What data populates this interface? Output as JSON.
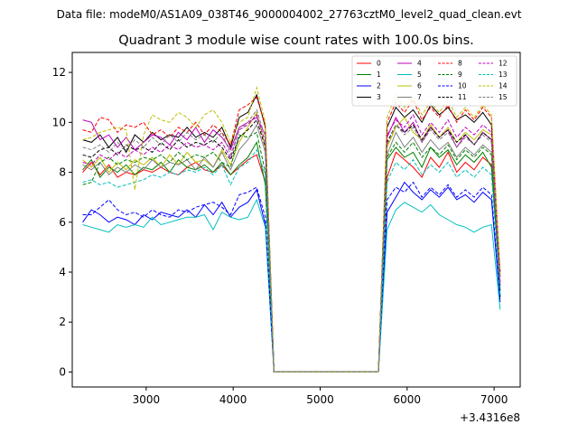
{
  "chart_data": {
    "type": "line",
    "suptitle": "Data file: modeM0/AS1A09_038T46_9000004002_27763cztM0_level2_quad_clean.evt",
    "title": "Quadrant 3 module wise count rates with 100.0s bins.",
    "xlabel": "",
    "ylabel": "",
    "x_offset_label": "+3.4316e8",
    "xlim": [
      2150,
      7300
    ],
    "ylim": [
      -0.6,
      12.8
    ],
    "xticks": [
      3000,
      4000,
      5000,
      6000,
      7000
    ],
    "yticks": [
      0,
      2,
      4,
      6,
      8,
      10,
      12
    ],
    "legend_position": "top-right",
    "x": [
      2270,
      2370,
      2470,
      2570,
      2670,
      2770,
      2870,
      2970,
      3070,
      3170,
      3270,
      3370,
      3470,
      3570,
      3670,
      3770,
      3870,
      3970,
      4070,
      4170,
      4270,
      4370,
      4470,
      4570,
      5570,
      5670,
      5770,
      5870,
      5970,
      6070,
      6170,
      6270,
      6370,
      6470,
      6570,
      6670,
      6770,
      6870,
      6970,
      7070
    ],
    "series": [
      {
        "name": "0",
        "color": "#ff0000",
        "dash": "solid",
        "values": [
          8.0,
          8.4,
          7.9,
          8.3,
          7.8,
          8.0,
          7.9,
          8.1,
          8.0,
          8.2,
          8.0,
          7.9,
          8.2,
          8.4,
          8.1,
          8.0,
          8.3,
          7.9,
          8.2,
          8.5,
          8.7,
          7.6,
          0.0,
          0.0,
          0.0,
          0.0,
          7.8,
          8.8,
          8.5,
          8.2,
          7.8,
          8.6,
          8.2,
          8.8,
          8.0,
          8.4,
          8.1,
          8.6,
          8.3,
          3.8
        ]
      },
      {
        "name": "1",
        "color": "#008000",
        "dash": "solid",
        "values": [
          8.1,
          8.5,
          7.8,
          8.2,
          8.0,
          8.3,
          7.9,
          8.2,
          8.1,
          8.4,
          8.0,
          8.5,
          8.2,
          8.1,
          8.3,
          8.0,
          8.4,
          7.9,
          8.3,
          8.6,
          9.2,
          7.5,
          0.0,
          0.0,
          0.0,
          0.0,
          8.5,
          9.0,
          8.6,
          8.8,
          8.2,
          9.0,
          8.6,
          8.9,
          8.3,
          8.7,
          8.4,
          8.8,
          8.2,
          3.5
        ]
      },
      {
        "name": "2",
        "color": "#0000ff",
        "dash": "solid",
        "values": [
          6.0,
          6.5,
          6.3,
          6.0,
          6.2,
          6.1,
          5.9,
          6.3,
          6.1,
          6.4,
          6.3,
          6.2,
          6.5,
          6.2,
          6.7,
          6.3,
          6.8,
          6.2,
          6.6,
          6.8,
          7.3,
          5.9,
          0.0,
          0.0,
          0.0,
          0.0,
          6.4,
          7.0,
          7.6,
          7.2,
          6.9,
          7.3,
          7.0,
          7.4,
          6.9,
          7.1,
          6.8,
          7.2,
          6.9,
          2.8
        ]
      },
      {
        "name": "3",
        "color": "#000000",
        "dash": "solid",
        "values": [
          9.3,
          9.2,
          9.5,
          9.0,
          9.4,
          8.8,
          9.5,
          9.2,
          9.6,
          9.3,
          9.5,
          9.4,
          9.8,
          9.4,
          9.6,
          9.4,
          9.8,
          9.0,
          10.2,
          10.4,
          11.1,
          9.8,
          0.0,
          0.0,
          0.0,
          0.0,
          9.8,
          10.6,
          10.2,
          10.5,
          10.0,
          10.7,
          10.3,
          10.6,
          10.1,
          10.3,
          10.0,
          10.4,
          9.9,
          3.0
        ]
      },
      {
        "name": "4",
        "color": "#bf00bf",
        "dash": "solid",
        "values": [
          10.1,
          10.0,
          9.3,
          9.5,
          9.0,
          9.4,
          8.9,
          9.2,
          9.5,
          9.4,
          9.1,
          9.6,
          9.3,
          9.8,
          9.2,
          9.7,
          9.4,
          8.9,
          9.8,
          10.0,
          10.2,
          9.5,
          0.0,
          0.0,
          0.0,
          0.0,
          9.4,
          10.2,
          9.6,
          10.0,
          9.2,
          9.8,
          9.4,
          9.7,
          9.0,
          9.5,
          9.1,
          9.6,
          9.3,
          3.4
        ]
      },
      {
        "name": "5",
        "color": "#00bfbf",
        "dash": "solid",
        "values": [
          5.9,
          5.8,
          5.7,
          5.6,
          5.9,
          5.8,
          5.9,
          5.8,
          6.2,
          5.9,
          6.0,
          6.1,
          6.2,
          6.2,
          6.3,
          5.7,
          6.4,
          6.2,
          6.1,
          6.2,
          6.9,
          5.8,
          0.0,
          0.0,
          0.0,
          0.0,
          5.7,
          6.5,
          6.8,
          6.6,
          6.4,
          6.7,
          6.3,
          6.1,
          5.9,
          5.8,
          5.6,
          5.8,
          5.9,
          2.5
        ]
      },
      {
        "name": "6",
        "color": "#bfbf00",
        "dash": "solid",
        "values": [
          8.5,
          8.2,
          8.6,
          8.0,
          8.4,
          8.1,
          8.5,
          8.3,
          8.6,
          8.2,
          8.7,
          8.3,
          8.8,
          8.4,
          8.5,
          8.2,
          8.9,
          8.3,
          9.2,
          9.8,
          10.4,
          9.0,
          0.0,
          0.0,
          0.0,
          0.0,
          9.0,
          9.8,
          10.2,
          9.6,
          9.3,
          9.9,
          9.4,
          9.8,
          9.2,
          9.6,
          9.3,
          9.7,
          9.5,
          3.9
        ]
      },
      {
        "name": "7",
        "color": "#808080",
        "dash": "solid",
        "values": [
          8.3,
          8.1,
          8.4,
          7.9,
          8.2,
          8.0,
          8.3,
          8.1,
          8.5,
          8.2,
          8.4,
          8.3,
          8.5,
          8.1,
          8.6,
          8.2,
          8.8,
          8.1,
          8.9,
          9.3,
          9.9,
          8.8,
          0.0,
          0.0,
          0.0,
          0.0,
          8.7,
          9.6,
          9.0,
          9.4,
          8.8,
          9.3,
          8.9,
          9.2,
          8.6,
          9.0,
          8.7,
          9.1,
          8.8,
          3.6
        ]
      },
      {
        "name": "8",
        "color": "#ff0000",
        "dash": "dashed",
        "values": [
          9.7,
          9.6,
          10.2,
          10.1,
          9.6,
          9.9,
          9.8,
          10.0,
          9.5,
          9.7,
          9.4,
          9.8,
          9.6,
          10.0,
          9.5,
          9.9,
          9.6,
          9.1,
          10.5,
          10.7,
          11.0,
          9.9,
          0.0,
          0.0,
          0.0,
          0.0,
          10.0,
          10.8,
          10.4,
          10.9,
          10.1,
          10.6,
          10.2,
          10.7,
          10.0,
          10.5,
          10.1,
          10.6,
          10.2,
          4.0
        ]
      },
      {
        "name": "9",
        "color": "#008000",
        "dash": "dashed",
        "values": [
          7.5,
          7.6,
          8.4,
          8.6,
          8.3,
          8.5,
          8.4,
          8.6,
          8.5,
          8.7,
          8.4,
          8.8,
          8.5,
          8.7,
          8.6,
          8.8,
          8.4,
          8.2,
          9.5,
          9.4,
          9.6,
          8.0,
          0.0,
          0.0,
          0.0,
          0.0,
          8.6,
          9.2,
          8.8,
          9.2,
          8.6,
          9.0,
          8.7,
          9.1,
          8.5,
          8.9,
          8.6,
          9.0,
          8.7,
          3.3
        ]
      },
      {
        "name": "10",
        "color": "#0000ff",
        "dash": "dashed",
        "values": [
          6.3,
          6.3,
          6.6,
          6.9,
          6.5,
          6.3,
          6.4,
          6.2,
          6.5,
          6.3,
          6.2,
          6.5,
          6.4,
          6.6,
          6.7,
          6.8,
          6.6,
          6.3,
          7.1,
          7.2,
          7.4,
          6.2,
          0.0,
          0.0,
          0.0,
          0.0,
          6.9,
          7.4,
          7.2,
          7.6,
          7.0,
          7.4,
          7.1,
          7.5,
          7.0,
          7.3,
          7.0,
          7.4,
          7.1,
          3.0
        ]
      },
      {
        "name": "11",
        "color": "#000000",
        "dash": "dashed",
        "values": [
          8.7,
          8.6,
          8.9,
          9.0,
          8.7,
          9.1,
          8.9,
          9.0,
          8.8,
          9.2,
          8.9,
          9.3,
          9.0,
          9.2,
          9.1,
          9.3,
          9.0,
          8.5,
          9.4,
          9.7,
          10.1,
          9.0,
          0.0,
          0.0,
          0.0,
          0.0,
          9.2,
          9.9,
          9.6,
          9.9,
          9.3,
          9.8,
          9.4,
          9.7,
          9.2,
          9.5,
          9.1,
          9.6,
          9.3,
          3.2
        ]
      },
      {
        "name": "12",
        "color": "#bf00bf",
        "dash": "dashed",
        "values": [
          8.4,
          8.3,
          8.7,
          8.5,
          8.8,
          8.6,
          8.9,
          8.7,
          9.0,
          8.8,
          9.1,
          8.9,
          9.2,
          9.0,
          9.1,
          8.9,
          9.2,
          8.6,
          9.7,
          9.9,
          10.3,
          9.2,
          0.0,
          0.0,
          0.0,
          0.0,
          9.5,
          10.1,
          9.8,
          10.3,
          9.5,
          10.0,
          9.6,
          10.1,
          9.4,
          9.8,
          9.5,
          9.9,
          9.6,
          3.6
        ]
      },
      {
        "name": "13",
        "color": "#00bfbf",
        "dash": "dashed",
        "values": [
          7.6,
          7.7,
          7.5,
          7.6,
          7.4,
          7.5,
          7.6,
          7.7,
          7.9,
          7.8,
          8.0,
          7.9,
          8.1,
          8.0,
          8.2,
          7.9,
          8.3,
          7.5,
          8.2,
          8.4,
          8.9,
          7.9,
          0.0,
          0.0,
          0.0,
          0.0,
          7.6,
          8.4,
          8.1,
          8.5,
          7.9,
          8.3,
          8.0,
          8.4,
          7.8,
          8.1,
          7.8,
          8.2,
          7.9,
          3.1
        ]
      },
      {
        "name": "14",
        "color": "#bfbf00",
        "dash": "dashed",
        "values": [
          9.3,
          9.4,
          9.6,
          9.7,
          9.8,
          9.7,
          7.3,
          9.5,
          10.3,
          10.1,
          10.0,
          10.4,
          10.2,
          9.8,
          10.3,
          10.5,
          10.0,
          9.2,
          10.0,
          10.2,
          11.4,
          10.0,
          0.0,
          0.0,
          0.0,
          0.0,
          10.2,
          11.1,
          10.6,
          11.0,
          10.3,
          10.8,
          10.4,
          10.9,
          10.2,
          10.6,
          10.2,
          10.7,
          10.3,
          4.1
        ]
      },
      {
        "name": "15",
        "color": "#808080",
        "dash": "dashed",
        "values": [
          9.0,
          8.9,
          9.1,
          8.8,
          9.2,
          8.9,
          9.3,
          9.0,
          9.4,
          9.1,
          9.5,
          9.2,
          9.6,
          9.3,
          9.5,
          9.2,
          9.6,
          8.7,
          9.7,
          10.0,
          10.5,
          9.4,
          0.0,
          0.0,
          0.0,
          0.0,
          9.1,
          9.9,
          9.5,
          9.8,
          9.2,
          9.7,
          9.3,
          9.6,
          9.0,
          9.4,
          9.1,
          9.5,
          9.2,
          3.5
        ]
      }
    ]
  }
}
